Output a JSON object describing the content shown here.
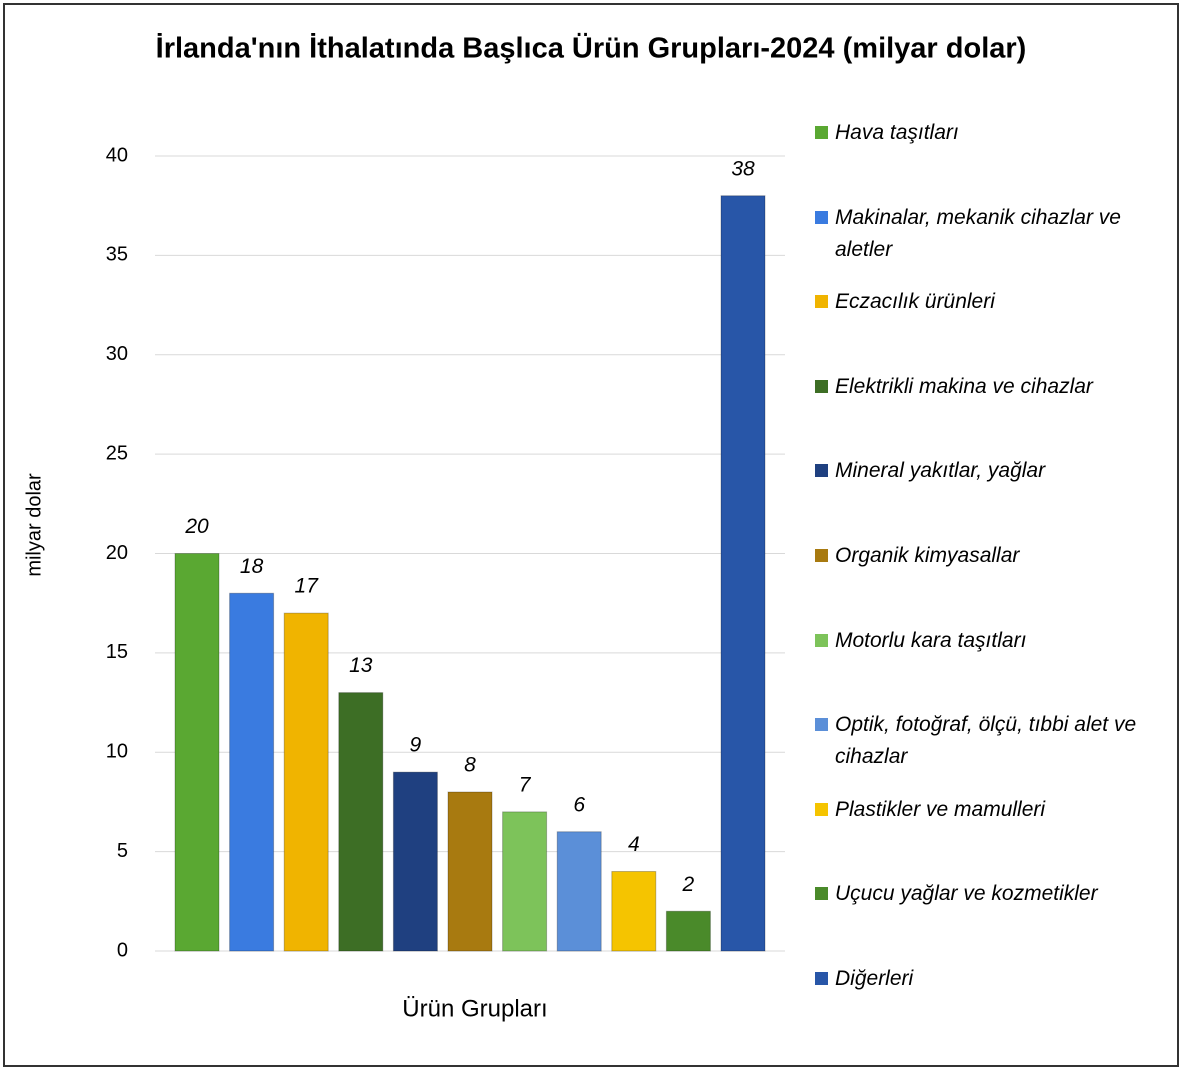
{
  "chart_data": {
    "type": "bar",
    "title": "İrlanda'nın İthalatında Başlıca Ürün Grupları-2024 (milyar dolar)",
    "x_label": "Ürün Grupları",
    "y_label": "milyar dolar",
    "categories": [
      "Hava taşıtları",
      "Makinalar, mekanik cihazlar ve aletler",
      "Eczacılık ürünleri",
      "Elektrikli makina ve cihazlar",
      "Mineral yakıtlar, yağlar",
      "Organik kimyasallar",
      "Motorlu kara taşıtları",
      "Optik, fotoğraf, ölçü, tıbbi alet ve cihazlar",
      "Plastikler ve mamulleri",
      "Uçucu yağlar ve kozmetikler",
      "Diğerleri"
    ],
    "values": [
      20,
      18,
      17,
      13,
      9,
      8,
      7,
      6,
      4,
      2,
      38
    ],
    "colors": [
      "#5aa832",
      "#3a7be0",
      "#f0b400",
      "#3d6e25",
      "#1f4080",
      "#a87a10",
      "#7dc35a",
      "#5b8fd8",
      "#f5c400",
      "#4a8a2a",
      "#2856a8"
    ],
    "ylim": [
      0,
      40
    ],
    "yticks": [
      0,
      5,
      10,
      15,
      20,
      25,
      30,
      35,
      40
    ],
    "grid": true,
    "legend": "right"
  }
}
